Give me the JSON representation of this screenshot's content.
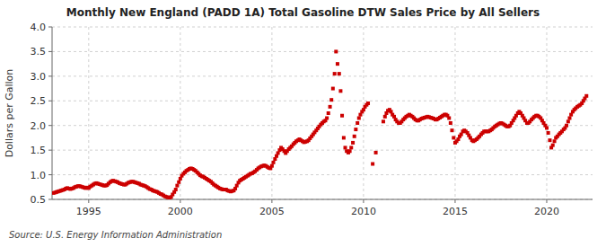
{
  "chart_data": {
    "type": "scatter",
    "title": "Monthly New England (PADD 1A) Total Gasoline DTW Sales Price by All Sellers",
    "ylabel": "Dollars per Gallon",
    "source": "Source: U.S. Energy Information Administration",
    "xlim": [
      1993.0,
      2022.5
    ],
    "ylim": [
      0.5,
      4.0
    ],
    "xticks": [
      1995,
      2000,
      2005,
      2010,
      2015,
      2020
    ],
    "yticks": [
      0.5,
      {
        "value": 1.0,
        "label": "1.0"
      },
      1.5,
      {
        "value": 2.0,
        "label": "2.0"
      },
      2.5,
      {
        "value": 3.0,
        "label": "3.0"
      },
      3.5,
      {
        "value": 4.0,
        "label": "4.0"
      }
    ],
    "grid": true,
    "series": [
      {
        "color": "#cc0000",
        "marker": "square",
        "x": [
          1993.08,
          1993.17,
          1993.25,
          1993.33,
          1993.42,
          1993.5,
          1993.58,
          1993.67,
          1993.75,
          1993.83,
          1993.92,
          1994.0,
          1994.08,
          1994.17,
          1994.25,
          1994.33,
          1994.42,
          1994.5,
          1994.58,
          1994.67,
          1994.75,
          1994.83,
          1994.92,
          1995.0,
          1995.08,
          1995.17,
          1995.25,
          1995.33,
          1995.42,
          1995.5,
          1995.58,
          1995.67,
          1995.75,
          1995.83,
          1995.92,
          1996.0,
          1996.08,
          1996.17,
          1996.25,
          1996.33,
          1996.42,
          1996.5,
          1996.58,
          1996.67,
          1996.75,
          1996.83,
          1996.92,
          1997.0,
          1997.08,
          1997.17,
          1997.25,
          1997.33,
          1997.42,
          1997.5,
          1997.58,
          1997.67,
          1997.75,
          1997.83,
          1997.92,
          1998.0,
          1998.08,
          1998.17,
          1998.25,
          1998.33,
          1998.42,
          1998.5,
          1998.58,
          1998.67,
          1998.75,
          1998.83,
          1998.92,
          1999.0,
          1999.08,
          1999.17,
          1999.25,
          1999.33,
          1999.42,
          1999.5,
          1999.58,
          1999.67,
          1999.75,
          1999.83,
          1999.92,
          2000.0,
          2000.08,
          2000.17,
          2000.25,
          2000.33,
          2000.42,
          2000.5,
          2000.58,
          2000.67,
          2000.75,
          2000.83,
          2000.92,
          2001.0,
          2001.08,
          2001.17,
          2001.25,
          2001.33,
          2001.42,
          2001.5,
          2001.58,
          2001.67,
          2001.75,
          2001.83,
          2001.92,
          2002.0,
          2002.08,
          2002.17,
          2002.25,
          2002.33,
          2002.42,
          2002.5,
          2002.58,
          2002.67,
          2002.75,
          2002.83,
          2002.92,
          2003.0,
          2003.08,
          2003.17,
          2003.25,
          2003.33,
          2003.42,
          2003.5,
          2003.58,
          2003.67,
          2003.75,
          2003.83,
          2003.92,
          2004.0,
          2004.08,
          2004.17,
          2004.25,
          2004.33,
          2004.42,
          2004.5,
          2004.58,
          2004.67,
          2004.75,
          2004.83,
          2004.92,
          2005.0,
          2005.08,
          2005.17,
          2005.25,
          2005.33,
          2005.42,
          2005.5,
          2005.58,
          2005.67,
          2005.75,
          2005.83,
          2005.92,
          2006.0,
          2006.08,
          2006.17,
          2006.25,
          2006.33,
          2006.42,
          2006.5,
          2006.58,
          2006.67,
          2006.75,
          2006.83,
          2006.92,
          2007.0,
          2007.08,
          2007.17,
          2007.25,
          2007.33,
          2007.42,
          2007.5,
          2007.58,
          2007.67,
          2007.75,
          2007.83,
          2007.92,
          2008.0,
          2008.08,
          2008.17,
          2008.25,
          2008.33,
          2008.42,
          2008.5,
          2008.58,
          2008.67,
          2008.75,
          2008.83,
          2008.92,
          2009.0,
          2009.08,
          2009.17,
          2009.25,
          2009.33,
          2009.42,
          2009.5,
          2009.58,
          2009.67,
          2009.75,
          2009.83,
          2009.92,
          2010.0,
          2010.08,
          2010.17,
          2010.25
        ],
        "values": [
          0.63,
          0.64,
          0.65,
          0.66,
          0.67,
          0.68,
          0.69,
          0.7,
          0.72,
          0.73,
          0.72,
          0.71,
          0.72,
          0.73,
          0.75,
          0.76,
          0.77,
          0.77,
          0.76,
          0.75,
          0.74,
          0.73,
          0.74,
          0.73,
          0.76,
          0.78,
          0.8,
          0.82,
          0.83,
          0.82,
          0.81,
          0.8,
          0.79,
          0.78,
          0.78,
          0.79,
          0.82,
          0.85,
          0.87,
          0.88,
          0.87,
          0.86,
          0.85,
          0.83,
          0.82,
          0.81,
          0.8,
          0.8,
          0.82,
          0.84,
          0.85,
          0.86,
          0.86,
          0.85,
          0.84,
          0.83,
          0.82,
          0.8,
          0.79,
          0.78,
          0.77,
          0.75,
          0.73,
          0.71,
          0.7,
          0.68,
          0.67,
          0.66,
          0.65,
          0.63,
          0.61,
          0.6,
          0.58,
          0.56,
          0.55,
          0.54,
          0.53,
          0.55,
          0.6,
          0.65,
          0.7,
          0.78,
          0.85,
          0.92,
          0.98,
          1.02,
          1.05,
          1.08,
          1.1,
          1.12,
          1.13,
          1.12,
          1.1,
          1.08,
          1.05,
          1.02,
          0.99,
          0.97,
          0.96,
          0.94,
          0.92,
          0.9,
          0.88,
          0.86,
          0.83,
          0.8,
          0.78,
          0.76,
          0.74,
          0.72,
          0.71,
          0.7,
          0.7,
          0.7,
          0.68,
          0.67,
          0.66,
          0.67,
          0.68,
          0.72,
          0.78,
          0.84,
          0.88,
          0.9,
          0.92,
          0.94,
          0.96,
          0.98,
          1.0,
          1.02,
          1.03,
          1.05,
          1.07,
          1.1,
          1.13,
          1.15,
          1.17,
          1.18,
          1.19,
          1.18,
          1.16,
          1.14,
          1.13,
          1.18,
          1.25,
          1.32,
          1.38,
          1.44,
          1.5,
          1.55,
          1.52,
          1.48,
          1.44,
          1.48,
          1.52,
          1.55,
          1.58,
          1.62,
          1.65,
          1.68,
          1.7,
          1.72,
          1.7,
          1.68,
          1.66,
          1.67,
          1.68,
          1.7,
          1.74,
          1.78,
          1.82,
          1.86,
          1.9,
          1.94,
          1.98,
          2.02,
          2.05,
          2.08,
          2.1,
          2.15,
          2.25,
          2.38,
          2.52,
          2.75,
          3.05,
          3.5,
          3.25,
          3.05,
          2.7,
          2.2,
          1.75,
          1.55,
          1.48,
          1.45,
          1.48,
          1.55,
          1.65,
          1.78,
          1.92,
          2.05,
          2.15,
          2.22,
          2.28,
          2.32,
          2.38,
          2.42,
          2.45
        ]
      },
      {
        "color": "#cc0000",
        "marker": "square",
        "x": [
          2010.5,
          2010.67,
          2011.08,
          2011.17,
          2011.25,
          2011.33,
          2011.42,
          2011.5,
          2011.58,
          2011.67,
          2011.75,
          2011.83,
          2011.92,
          2012.0,
          2012.08,
          2012.17,
          2012.25,
          2012.33,
          2012.42,
          2012.5,
          2012.58,
          2012.67,
          2012.75,
          2012.83,
          2012.92,
          2013.0,
          2013.08,
          2013.17,
          2013.25,
          2013.33,
          2013.42,
          2013.5,
          2013.58,
          2013.67,
          2013.75,
          2013.83,
          2013.92,
          2014.0,
          2014.08,
          2014.17,
          2014.25,
          2014.33,
          2014.42,
          2014.5,
          2014.58,
          2014.67,
          2014.75,
          2014.83,
          2014.92,
          2015.0,
          2015.08,
          2015.17,
          2015.25,
          2015.33,
          2015.42,
          2015.5,
          2015.58,
          2015.67,
          2015.75,
          2015.83,
          2015.92,
          2016.0,
          2016.08,
          2016.17,
          2016.25,
          2016.33,
          2016.42,
          2016.5,
          2016.58,
          2016.67,
          2016.75,
          2016.83,
          2016.92,
          2017.0,
          2017.08,
          2017.17,
          2017.25,
          2017.33,
          2017.42,
          2017.5,
          2017.58,
          2017.67,
          2017.75,
          2017.83,
          2017.92,
          2018.0,
          2018.08,
          2018.17,
          2018.25,
          2018.33,
          2018.42,
          2018.5,
          2018.58,
          2018.67,
          2018.75,
          2018.83,
          2018.92,
          2019.0,
          2019.08,
          2019.17,
          2019.25,
          2019.33,
          2019.42,
          2019.5,
          2019.58,
          2019.67,
          2019.75,
          2019.83,
          2019.92,
          2020.0,
          2020.08,
          2020.17,
          2020.25,
          2020.33,
          2020.42,
          2020.5,
          2020.58,
          2020.67,
          2020.75,
          2020.83,
          2020.92,
          2021.0,
          2021.08,
          2021.17,
          2021.25,
          2021.33,
          2021.42,
          2021.5,
          2021.58,
          2021.67,
          2021.75,
          2021.83,
          2021.92,
          2022.0,
          2022.08,
          2022.17
        ],
        "values": [
          1.22,
          1.45,
          2.08,
          2.18,
          2.25,
          2.3,
          2.32,
          2.28,
          2.22,
          2.18,
          2.12,
          2.08,
          2.05,
          2.05,
          2.08,
          2.12,
          2.15,
          2.18,
          2.2,
          2.22,
          2.2,
          2.18,
          2.15,
          2.12,
          2.1,
          2.1,
          2.12,
          2.14,
          2.15,
          2.16,
          2.17,
          2.18,
          2.17,
          2.16,
          2.15,
          2.14,
          2.12,
          2.12,
          2.14,
          2.16,
          2.18,
          2.2,
          2.22,
          2.22,
          2.2,
          2.15,
          2.05,
          1.9,
          1.75,
          1.65,
          1.68,
          1.72,
          1.78,
          1.82,
          1.88,
          1.9,
          1.88,
          1.85,
          1.8,
          1.75,
          1.7,
          1.68,
          1.7,
          1.72,
          1.75,
          1.78,
          1.82,
          1.85,
          1.88,
          1.88,
          1.88,
          1.88,
          1.9,
          1.92,
          1.95,
          1.98,
          2.0,
          2.02,
          2.04,
          2.05,
          2.04,
          2.02,
          2.0,
          1.98,
          1.98,
          2.0,
          2.05,
          2.1,
          2.15,
          2.2,
          2.25,
          2.28,
          2.25,
          2.2,
          2.15,
          2.1,
          2.05,
          2.05,
          2.08,
          2.12,
          2.15,
          2.18,
          2.2,
          2.2,
          2.18,
          2.15,
          2.1,
          2.05,
          2.0,
          1.95,
          1.85,
          1.7,
          1.55,
          1.6,
          1.68,
          1.75,
          1.78,
          1.82,
          1.85,
          1.88,
          1.92,
          1.95,
          2.0,
          2.08,
          2.15,
          2.22,
          2.28,
          2.32,
          2.35,
          2.38,
          2.4,
          2.42,
          2.45,
          2.5,
          2.55,
          2.6
        ]
      }
    ]
  }
}
